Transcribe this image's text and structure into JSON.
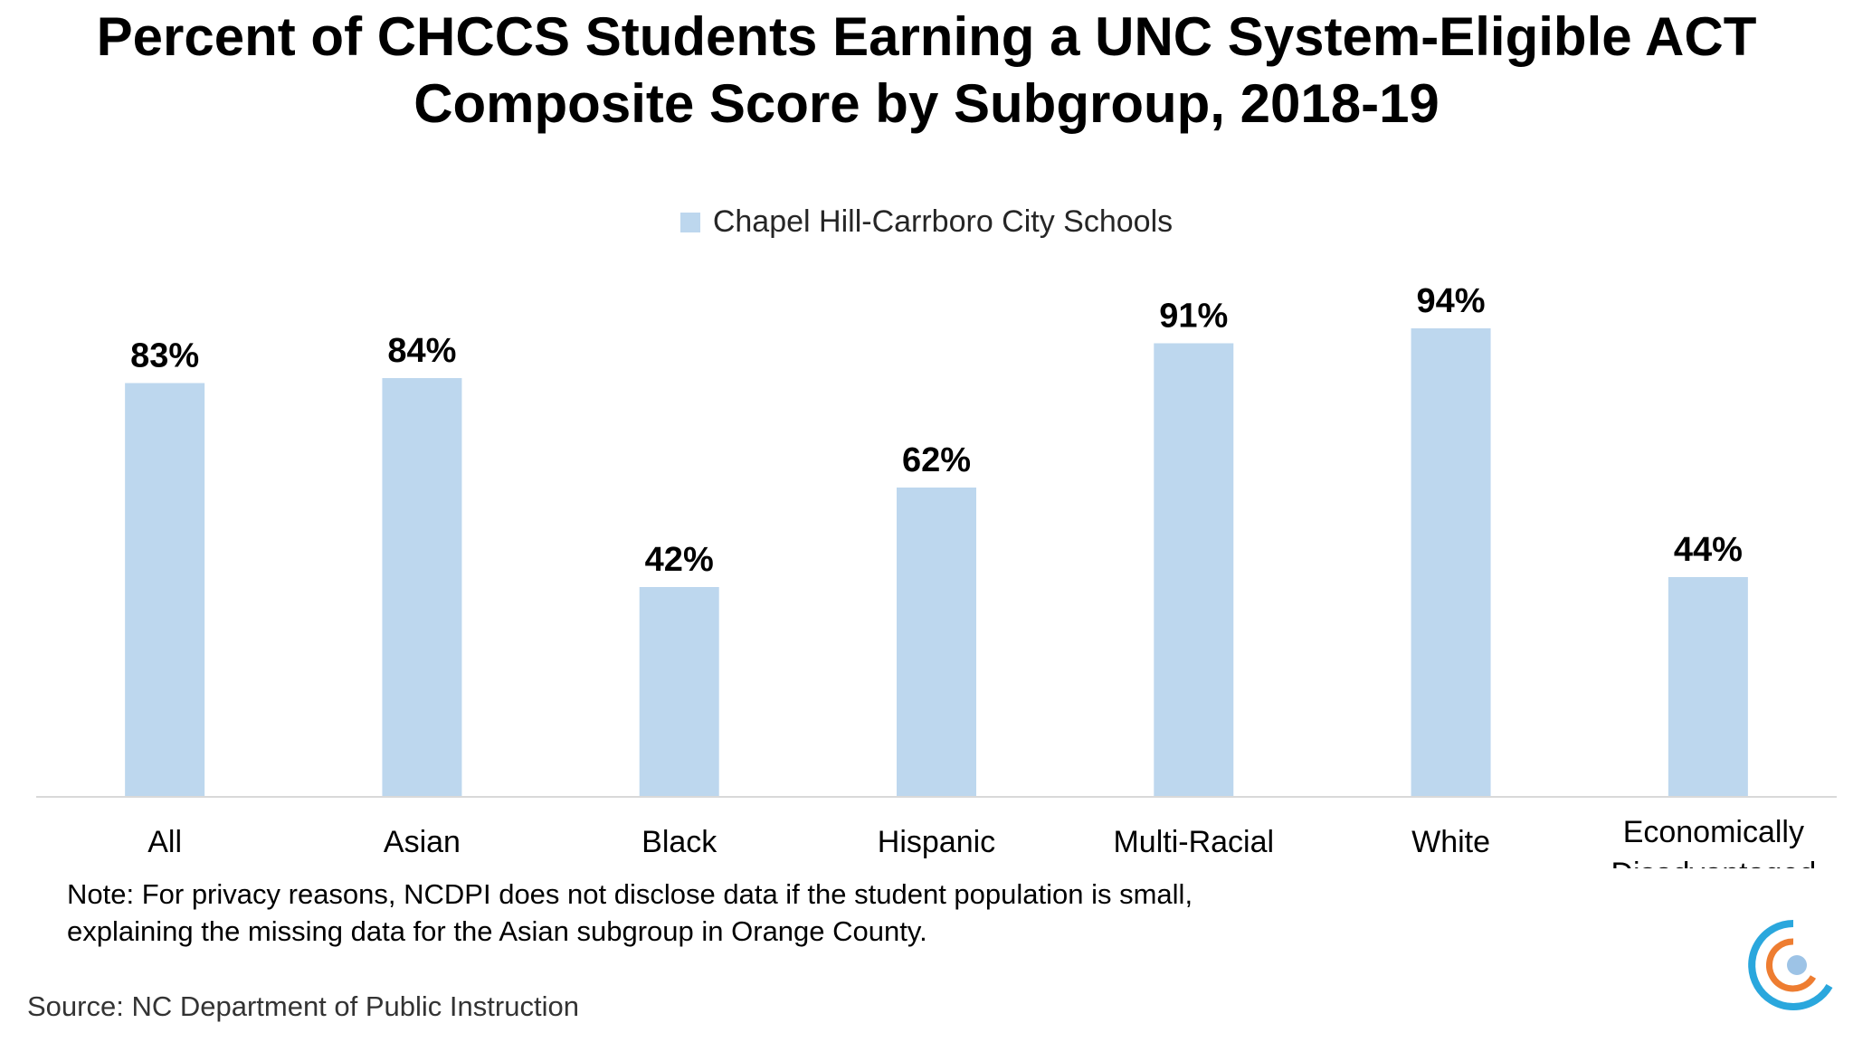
{
  "title_line1": "Percent of CHCCS Students Earning a UNC System-Eligible ACT",
  "title_line2": "Composite Score by Subgroup, 2018-19",
  "colors": {
    "bar": "#bdd7ee",
    "axis": "#d9d9d9",
    "logo_orange": "#ee7d31",
    "logo_teal": "#2aa7dd",
    "logo_center": "#9dc3e6"
  },
  "logo_name": "chccs-circle-logo",
  "chart_data": {
    "type": "bar",
    "title": "Percent of CHCCS Students Earning a UNC System-Eligible ACT Composite Score by Subgroup, 2018-19",
    "categories": [
      "All",
      "Asian",
      "Black",
      "Hispanic",
      "Multi-Racial",
      "White",
      "Economically Disadvantaged"
    ],
    "category_lines": [
      [
        "All"
      ],
      [
        "Asian"
      ],
      [
        "Black"
      ],
      [
        "Hispanic"
      ],
      [
        "Multi-Racial"
      ],
      [
        "White"
      ],
      [
        "Economically",
        "Disadvantaged"
      ]
    ],
    "series": [
      {
        "name": "Chapel Hill-Carrboro City Schools",
        "values": [
          83,
          84,
          42,
          62,
          91,
          94,
          44
        ]
      }
    ],
    "data_labels": [
      "83%",
      "84%",
      "42%",
      "62%",
      "91%",
      "94%",
      "44%"
    ],
    "ylim": [
      0,
      100
    ],
    "grid": false,
    "legend_position": "top-center",
    "xlabel": "",
    "ylabel": ""
  },
  "note": "Note: For privacy reasons, NCDPI does not disclose data if the student population is small, explaining the missing data for the Asian subgroup in Orange County.",
  "source": "Source: NC Department of Public Instruction"
}
